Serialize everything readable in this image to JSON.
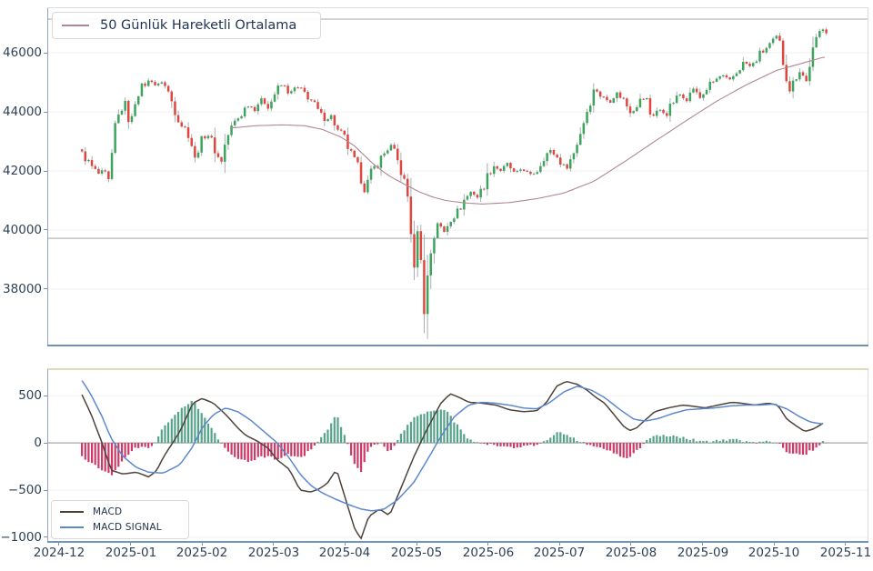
{
  "figure": {
    "background": "#ffffff"
  },
  "colors": {
    "candle_up": "#3ba55d",
    "candle_down": "#e0463e",
    "wick": "#a0a6ab",
    "ma_line": "#b08791",
    "macd_line": "#4e433c",
    "signal_line": "#5e88cc",
    "hist_pos": "#55a489",
    "hist_neg": "#cc3a67",
    "level_line": "#b9b9b9",
    "zero_line": "#a9a9a9",
    "grid": "#f1f1f1",
    "spine_left": "#8ea6bf",
    "spine_bottom_price": "#7391b0",
    "spine_bottom_axis": "#6f96c0",
    "spine_top_macd": "#d5cfa5",
    "spine_faint": "#dcdcdc",
    "tick_text": "#2e4057"
  },
  "x_axis": {
    "ticks": [
      {
        "label": "2024-12",
        "value": 0
      },
      {
        "label": "2025-01",
        "value": 1
      },
      {
        "label": "2025-02",
        "value": 2
      },
      {
        "label": "2025-03",
        "value": 3
      },
      {
        "label": "2025-04",
        "value": 4
      },
      {
        "label": "2025-05",
        "value": 5
      },
      {
        "label": "2025-06",
        "value": 6
      },
      {
        "label": "2025-07",
        "value": 7
      },
      {
        "label": "2025-08",
        "value": 8
      },
      {
        "label": "2025-09",
        "value": 9
      },
      {
        "label": "2025-10",
        "value": 10
      },
      {
        "label": "2025-11",
        "value": 11
      }
    ],
    "unit": "month, 0 = 2024-12",
    "xlim": [
      -0.165,
      11.32
    ]
  },
  "chart_data": [
    {
      "type": "candlestick",
      "legend_label": "50 Günlük Hareketli Ortalama",
      "legend_position": "upper-left",
      "grid": true,
      "ylim": [
        36060,
        47540
      ],
      "y_ticks": [
        {
          "label": "46000",
          "value": 46000
        },
        {
          "label": "44000",
          "value": 44000
        },
        {
          "label": "42000",
          "value": 42000
        },
        {
          "label": "40000",
          "value": 40000
        },
        {
          "label": "38000",
          "value": 38000
        }
      ],
      "levels": [
        47140,
        39720
      ],
      "candles": {
        "count": 225,
        "t_start": 0.32,
        "t_end": 10.73
      },
      "close_keyframes": [
        [
          0.32,
          42600
        ],
        [
          0.45,
          42150
        ],
        [
          0.55,
          41900
        ],
        [
          0.64,
          41950
        ],
        [
          0.7,
          41550
        ],
        [
          0.79,
          43650
        ],
        [
          0.87,
          44050
        ],
        [
          0.93,
          44300
        ],
        [
          0.99,
          43400
        ],
        [
          1.08,
          44600
        ],
        [
          1.18,
          44900
        ],
        [
          1.28,
          45100
        ],
        [
          1.36,
          44850
        ],
        [
          1.44,
          45050
        ],
        [
          1.53,
          44650
        ],
        [
          1.63,
          44000
        ],
        [
          1.72,
          43550
        ],
        [
          1.82,
          43250
        ],
        [
          1.9,
          42400
        ],
        [
          1.97,
          42900
        ],
        [
          2.07,
          43300
        ],
        [
          2.16,
          42850
        ],
        [
          2.26,
          42250
        ],
        [
          2.34,
          43100
        ],
        [
          2.44,
          43600
        ],
        [
          2.54,
          43900
        ],
        [
          2.63,
          44250
        ],
        [
          2.74,
          44100
        ],
        [
          2.82,
          44440
        ],
        [
          2.93,
          44150
        ],
        [
          3.03,
          44700
        ],
        [
          3.13,
          44950
        ],
        [
          3.22,
          44600
        ],
        [
          3.31,
          44850
        ],
        [
          3.41,
          44700
        ],
        [
          3.51,
          44450
        ],
        [
          3.61,
          44050
        ],
        [
          3.71,
          43750
        ],
        [
          3.82,
          43850
        ],
        [
          3.89,
          43350
        ],
        [
          3.99,
          43100
        ],
        [
          4.08,
          42550
        ],
        [
          4.19,
          42050
        ],
        [
          4.27,
          41350
        ],
        [
          4.36,
          41900
        ],
        [
          4.45,
          42250
        ],
        [
          4.55,
          42600
        ],
        [
          4.64,
          42850
        ],
        [
          4.73,
          42350
        ],
        [
          4.82,
          41700
        ],
        [
          4.9,
          40850
        ],
        [
          4.96,
          38300
        ],
        [
          5.01,
          40200
        ],
        [
          5.06,
          38900
        ],
        [
          5.11,
          37200
        ],
        [
          5.17,
          38900
        ],
        [
          5.23,
          39600
        ],
        [
          5.29,
          40300
        ],
        [
          5.38,
          39900
        ],
        [
          5.47,
          40400
        ],
        [
          5.57,
          40600
        ],
        [
          5.66,
          41000
        ],
        [
          5.76,
          41300
        ],
        [
          5.86,
          41100
        ],
        [
          5.97,
          41700
        ],
        [
          6.07,
          42200
        ],
        [
          6.17,
          42000
        ],
        [
          6.27,
          42250
        ],
        [
          6.37,
          41900
        ],
        [
          6.48,
          42100
        ],
        [
          6.58,
          41850
        ],
        [
          6.68,
          42000
        ],
        [
          6.78,
          42500
        ],
        [
          6.88,
          42700
        ],
        [
          6.98,
          42400
        ],
        [
          7.09,
          42100
        ],
        [
          7.19,
          42550
        ],
        [
          7.29,
          43300
        ],
        [
          7.39,
          44100
        ],
        [
          7.49,
          44800
        ],
        [
          7.59,
          44500
        ],
        [
          7.7,
          44350
        ],
        [
          7.8,
          44650
        ],
        [
          7.9,
          44400
        ],
        [
          8.0,
          43950
        ],
        [
          8.1,
          44350
        ],
        [
          8.21,
          44500
        ],
        [
          8.28,
          43800
        ],
        [
          8.38,
          44100
        ],
        [
          8.49,
          43900
        ],
        [
          8.59,
          44350
        ],
        [
          8.69,
          44600
        ],
        [
          8.77,
          44400
        ],
        [
          8.87,
          44800
        ],
        [
          8.97,
          44450
        ],
        [
          9.07,
          44850
        ],
        [
          9.17,
          45050
        ],
        [
          9.27,
          45250
        ],
        [
          9.38,
          45050
        ],
        [
          9.48,
          45350
        ],
        [
          9.58,
          45700
        ],
        [
          9.68,
          45500
        ],
        [
          9.78,
          45900
        ],
        [
          9.89,
          46150
        ],
        [
          9.99,
          46400
        ],
        [
          10.06,
          46550
        ],
        [
          10.14,
          45500
        ],
        [
          10.22,
          44750
        ],
        [
          10.29,
          45150
        ],
        [
          10.37,
          45400
        ],
        [
          10.45,
          45000
        ],
        [
          10.52,
          45900
        ],
        [
          10.6,
          46450
        ],
        [
          10.67,
          46900
        ],
        [
          10.73,
          46700
        ]
      ],
      "ma_keyframes": [
        [
          2.39,
          43450
        ],
        [
          2.74,
          43530
        ],
        [
          3.12,
          43560
        ],
        [
          3.44,
          43530
        ],
        [
          3.69,
          43400
        ],
        [
          3.94,
          43150
        ],
        [
          4.13,
          42850
        ],
        [
          4.26,
          42550
        ],
        [
          4.39,
          42250
        ],
        [
          4.52,
          42000
        ],
        [
          4.64,
          41800
        ],
        [
          4.83,
          41550
        ],
        [
          5.03,
          41300
        ],
        [
          5.22,
          41120
        ],
        [
          5.41,
          41000
        ],
        [
          5.66,
          40920
        ],
        [
          5.92,
          40880
        ],
        [
          6.3,
          40930
        ],
        [
          6.68,
          41060
        ],
        [
          7.06,
          41250
        ],
        [
          7.48,
          41650
        ],
        [
          7.9,
          42300
        ],
        [
          8.33,
          43000
        ],
        [
          8.77,
          43700
        ],
        [
          9.19,
          44350
        ],
        [
          9.6,
          44900
        ],
        [
          10.03,
          45400
        ],
        [
          10.4,
          45650
        ],
        [
          10.69,
          45850
        ]
      ]
    },
    {
      "type": "macd",
      "grid": true,
      "ylim": [
        -1058,
        790
      ],
      "y_ticks": [
        {
          "label": "500",
          "value": 500
        },
        {
          "label": "0",
          "value": 0
        },
        {
          "label": "−500",
          "value": -500
        },
        {
          "label": "−1000",
          "value": -1000
        }
      ],
      "zero_line": 0,
      "histogram": "macd_minus_signal",
      "legend_position": "lower-left",
      "series": [
        {
          "name": "MACD",
          "keyframes": [
            [
              0.32,
              510
            ],
            [
              0.45,
              300
            ],
            [
              0.6,
              0
            ],
            [
              0.73,
              -290
            ],
            [
              0.89,
              -330
            ],
            [
              1.08,
              -310
            ],
            [
              1.25,
              -360
            ],
            [
              1.36,
              -300
            ],
            [
              1.46,
              -150
            ],
            [
              1.69,
              120
            ],
            [
              1.87,
              420
            ],
            [
              2.0,
              470
            ],
            [
              2.16,
              420
            ],
            [
              2.33,
              300
            ],
            [
              2.51,
              150
            ],
            [
              2.61,
              80
            ],
            [
              2.77,
              20
            ],
            [
              2.93,
              -60
            ],
            [
              3.05,
              -180
            ],
            [
              3.22,
              -280
            ],
            [
              3.37,
              -500
            ],
            [
              3.52,
              -520
            ],
            [
              3.63,
              -490
            ],
            [
              3.75,
              -430
            ],
            [
              3.88,
              -280
            ],
            [
              4.13,
              -900
            ],
            [
              4.22,
              -1020
            ],
            [
              4.33,
              -780
            ],
            [
              4.48,
              -700
            ],
            [
              4.62,
              -770
            ],
            [
              4.77,
              -500
            ],
            [
              4.96,
              -150
            ],
            [
              5.15,
              150
            ],
            [
              5.34,
              420
            ],
            [
              5.47,
              520
            ],
            [
              5.6,
              480
            ],
            [
              5.73,
              430
            ],
            [
              5.92,
              420
            ],
            [
              6.11,
              400
            ],
            [
              6.3,
              350
            ],
            [
              6.49,
              330
            ],
            [
              6.68,
              340
            ],
            [
              6.81,
              420
            ],
            [
              6.96,
              600
            ],
            [
              7.09,
              650
            ],
            [
              7.25,
              620
            ],
            [
              7.38,
              560
            ],
            [
              7.51,
              480
            ],
            [
              7.63,
              420
            ],
            [
              7.76,
              300
            ],
            [
              7.89,
              180
            ],
            [
              7.98,
              130
            ],
            [
              8.08,
              160
            ],
            [
              8.21,
              250
            ],
            [
              8.33,
              330
            ],
            [
              8.52,
              370
            ],
            [
              8.72,
              400
            ],
            [
              8.84,
              390
            ],
            [
              9.03,
              370
            ],
            [
              9.22,
              400
            ],
            [
              9.41,
              430
            ],
            [
              9.54,
              420
            ],
            [
              9.73,
              400
            ],
            [
              9.92,
              420
            ],
            [
              10.05,
              400
            ],
            [
              10.18,
              250
            ],
            [
              10.31,
              180
            ],
            [
              10.43,
              120
            ],
            [
              10.56,
              150
            ],
            [
              10.69,
              210
            ]
          ]
        },
        {
          "name": "MACD SIGNAL",
          "keyframes": [
            [
              0.32,
              660
            ],
            [
              0.44,
              520
            ],
            [
              0.6,
              280
            ],
            [
              0.72,
              60
            ],
            [
              0.89,
              -140
            ],
            [
              1.08,
              -260
            ],
            [
              1.25,
              -310
            ],
            [
              1.46,
              -320
            ],
            [
              1.69,
              -230
            ],
            [
              1.87,
              -40
            ],
            [
              2.0,
              160
            ],
            [
              2.16,
              300
            ],
            [
              2.33,
              370
            ],
            [
              2.5,
              330
            ],
            [
              2.68,
              240
            ],
            [
              2.85,
              130
            ],
            [
              3.05,
              0
            ],
            [
              3.22,
              -160
            ],
            [
              3.37,
              -330
            ],
            [
              3.52,
              -450
            ],
            [
              3.68,
              -530
            ],
            [
              3.88,
              -600
            ],
            [
              4.07,
              -660
            ],
            [
              4.22,
              -700
            ],
            [
              4.38,
              -720
            ],
            [
              4.55,
              -700
            ],
            [
              4.74,
              -600
            ],
            [
              4.96,
              -420
            ],
            [
              5.15,
              -180
            ],
            [
              5.35,
              80
            ],
            [
              5.53,
              280
            ],
            [
              5.73,
              400
            ],
            [
              5.91,
              430
            ],
            [
              6.11,
              420
            ],
            [
              6.3,
              400
            ],
            [
              6.49,
              370
            ],
            [
              6.68,
              360
            ],
            [
              6.85,
              420
            ],
            [
              7.06,
              540
            ],
            [
              7.25,
              600
            ],
            [
              7.44,
              560
            ],
            [
              7.63,
              480
            ],
            [
              7.83,
              360
            ],
            [
              8.04,
              250
            ],
            [
              8.2,
              230
            ],
            [
              8.39,
              260
            ],
            [
              8.58,
              310
            ],
            [
              8.77,
              350
            ],
            [
              8.96,
              360
            ],
            [
              9.17,
              370
            ],
            [
              9.38,
              390
            ],
            [
              9.58,
              400
            ],
            [
              9.79,
              400
            ],
            [
              9.99,
              410
            ],
            [
              10.18,
              360
            ],
            [
              10.35,
              280
            ],
            [
              10.51,
              220
            ],
            [
              10.69,
              200
            ]
          ]
        }
      ]
    }
  ]
}
